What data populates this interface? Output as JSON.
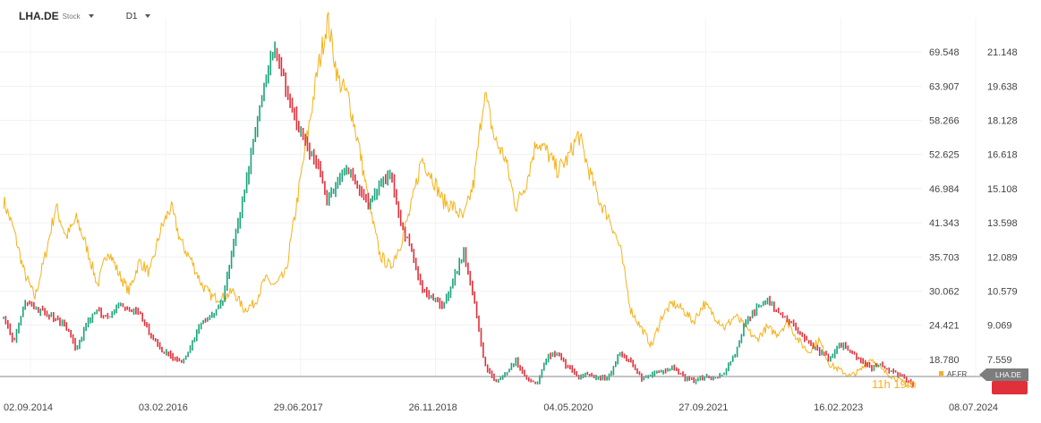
{
  "toolbar": {
    "symbol": "LHA.DE",
    "instrument_type": "Stock",
    "timeframe": "D1"
  },
  "colors": {
    "primary_up": "#1aa37a",
    "primary_down": "#e0303a",
    "compare": "#f5b21b",
    "baseline": "#8a8a8a"
  },
  "chart_data": {
    "type": "line",
    "x_labels": [
      "02.09.2014",
      "03.02.2016",
      "29.06.2017",
      "26.11.2018",
      "04.05.2020",
      "27.09.2021",
      "16.02.2023",
      "08.07.2024"
    ],
    "y_left": {
      "ticks": [
        "69.548",
        "63.907",
        "58.266",
        "52.625",
        "46.984",
        "41.343",
        "35.703",
        "30.062",
        "24.421",
        "18.780"
      ],
      "ylim": [
        13.139,
        75.189
      ]
    },
    "y_right": {
      "ticks": [
        "21.148",
        "19.638",
        "18.128",
        "16.618",
        "15.108",
        "13.598",
        "12.089",
        "10.579",
        "9.069",
        "7.559"
      ],
      "ylim": [
        6.049,
        22.658
      ]
    },
    "series": [
      {
        "name": "AF.FR",
        "axis": "left",
        "values": [
          45,
          40,
          33,
          29,
          36,
          44,
          39,
          42,
          37,
          31,
          37,
          33,
          30,
          35,
          33,
          40,
          44,
          38,
          35,
          31,
          29,
          29,
          30,
          27,
          28,
          32,
          31,
          33,
          44,
          55,
          66,
          75,
          65,
          62,
          54,
          44,
          36,
          34,
          38,
          44,
          52,
          49,
          45,
          44,
          42,
          48,
          63,
          55,
          52,
          44,
          48,
          55,
          53,
          50,
          52,
          56,
          50,
          45,
          42,
          37,
          27,
          24,
          21,
          26,
          28,
          27,
          25,
          28,
          26,
          24,
          26,
          24,
          22,
          24,
          23,
          25,
          22,
          20,
          22,
          18,
          17,
          16,
          17,
          19,
          17,
          16,
          15,
          14
        ]
      },
      {
        "name": "LHA.DE",
        "axis": "right",
        "values": [
          9.4,
          8.3,
          10.2,
          9.8,
          9.6,
          9.4,
          9.0,
          8.0,
          9.2,
          9.7,
          9.4,
          10.0,
          9.8,
          9.6,
          8.7,
          8.0,
          7.7,
          7.4,
          8.2,
          9.2,
          9.5,
          10.2,
          12.8,
          14.8,
          17.5,
          20.0,
          21.3,
          19.6,
          18.0,
          17.0,
          16.2,
          14.5,
          15.6,
          16.0,
          15.0,
          14.4,
          15.2,
          15.8,
          13.5,
          12.5,
          10.6,
          10.4,
          9.8,
          11.0,
          12.3,
          10.2,
          7.3,
          6.6,
          6.9,
          7.5,
          6.7,
          6.5,
          7.7,
          7.8,
          7.2,
          6.8,
          6.9,
          6.7,
          6.8,
          7.9,
          7.4,
          6.7,
          6.9,
          7.0,
          7.2,
          6.8,
          6.6,
          6.8,
          6.7,
          7.0,
          7.8,
          9.2,
          9.8,
          10.2,
          9.6,
          9.3,
          8.8,
          8.3,
          7.9,
          7.6,
          8.2,
          8.0,
          7.5,
          7.2,
          7.3,
          7.0,
          6.8,
          6.4
        ]
      }
    ],
    "last_labels": {
      "left": "AF.FR",
      "right": "LHA.DE"
    },
    "countdown": "11h 19m"
  }
}
